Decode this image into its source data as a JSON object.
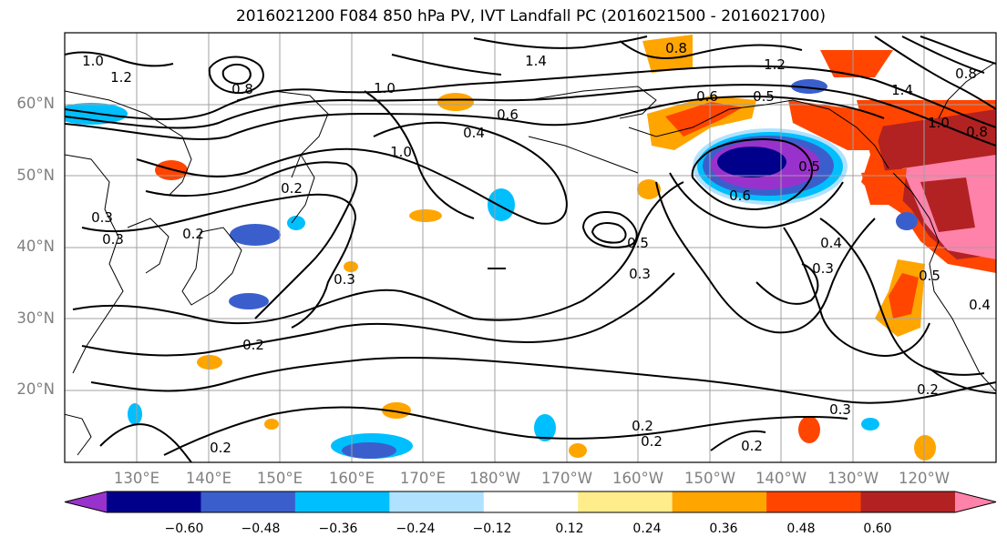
{
  "title": "2016021200 F084 850 hPa PV, IVT Landfall PC (2016021500 - 2016021700)",
  "map": {
    "lat_labels": [
      "20°N",
      "30°N",
      "40°N",
      "50°N",
      "60°N"
    ],
    "lon_labels": [
      "130°E",
      "140°E",
      "150°E",
      "160°E",
      "170°E",
      "180°W",
      "170°W",
      "160°W",
      "150°W",
      "140°W",
      "130°W",
      "120°W"
    ],
    "contour_labels": [
      "1.0",
      "1.2",
      "0.8",
      "1.4",
      "1.0",
      "0.8",
      "0.6",
      "0.4",
      "1.0",
      "0.2",
      "0.3",
      "0.3",
      "0.2",
      "0.5",
      "0.3",
      "0.3",
      "0.2",
      "0.2",
      "0.2",
      "0.2",
      "0.2",
      "0.5",
      "0.6",
      "0.4",
      "0.3",
      "0.2",
      "0.3",
      "0.5",
      "0.4",
      "0.8",
      "1.0",
      "1.2",
      "1.4",
      "0.6",
      "0.5",
      "0.8"
    ],
    "shading_colors": {
      "le_-0.60": "#9932cc",
      "-0.60_-0.48": "#00008b",
      "-0.48_-0.36": "#3a5fcd",
      "-0.36_-0.24": "#00bfff",
      "-0.24_-0.12": "#b0e2ff",
      "-0.12_0.12": "#ffffff",
      "0.12_0.24": "#ffec8b",
      "0.24_0.36": "#ffa500",
      "0.36_0.48": "#ff4500",
      "0.48_0.60": "#b22222",
      "ge_0.60": "#ff82ab"
    }
  },
  "colorbar": {
    "tick_labels": [
      "−0.60",
      "−0.48",
      "−0.36",
      "−0.24",
      "−0.12",
      "0.12",
      "0.24",
      "0.36",
      "0.48",
      "0.60"
    ],
    "colors": [
      "#9932cc",
      "#00008b",
      "#3a5fcd",
      "#00bfff",
      "#b0e2ff",
      "#ffffff",
      "#ffec8b",
      "#ffa500",
      "#ff4500",
      "#b22222",
      "#ff82ab"
    ],
    "extend": "both"
  }
}
